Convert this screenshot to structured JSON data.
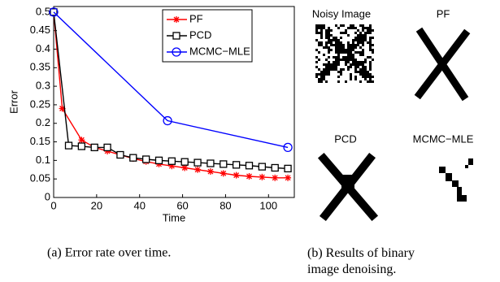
{
  "chart_data": {
    "type": "line",
    "xlabel": "Time",
    "ylabel": "Error",
    "xlim": [
      0,
      112
    ],
    "ylim": [
      0,
      0.515
    ],
    "xticks": [
      0,
      20,
      40,
      60,
      80,
      100
    ],
    "yticks": [
      0,
      0.05,
      0.1,
      0.15,
      0.2,
      0.25,
      0.3,
      0.35,
      0.4,
      0.45,
      0.5
    ],
    "legend": "upper right",
    "series": [
      {
        "name": "PF",
        "color": "#ff0000",
        "marker": "asterisk",
        "x": [
          0,
          4,
          13,
          19,
          25,
          31,
          37,
          43,
          49,
          55,
          61,
          67,
          73,
          79,
          85,
          91,
          97,
          103,
          109
        ],
        "values": [
          0.5,
          0.24,
          0.155,
          0.135,
          0.125,
          0.115,
          0.105,
          0.097,
          0.09,
          0.085,
          0.08,
          0.075,
          0.07,
          0.065,
          0.06,
          0.057,
          0.055,
          0.053,
          0.053
        ]
      },
      {
        "name": "PCD",
        "color": "#000000",
        "marker": "square",
        "x": [
          0,
          7,
          13,
          19,
          25,
          31,
          37,
          43,
          49,
          55,
          61,
          67,
          73,
          79,
          85,
          91,
          97,
          103,
          109
        ],
        "values": [
          0.5,
          0.14,
          0.138,
          0.135,
          0.135,
          0.115,
          0.107,
          0.103,
          0.1,
          0.098,
          0.096,
          0.094,
          0.092,
          0.09,
          0.088,
          0.086,
          0.083,
          0.08,
          0.078
        ]
      },
      {
        "name": "MCMC−MLE",
        "color": "#0000ff",
        "marker": "circle",
        "x": [
          0,
          53,
          109
        ],
        "values": [
          0.5,
          0.207,
          0.135
        ]
      }
    ]
  },
  "panels": [
    "Noisy Image",
    "PF",
    "PCD",
    "MCMC−MLE"
  ],
  "captions": [
    "(a) Error rate over time.",
    "(b) Results of binary image denoising."
  ]
}
